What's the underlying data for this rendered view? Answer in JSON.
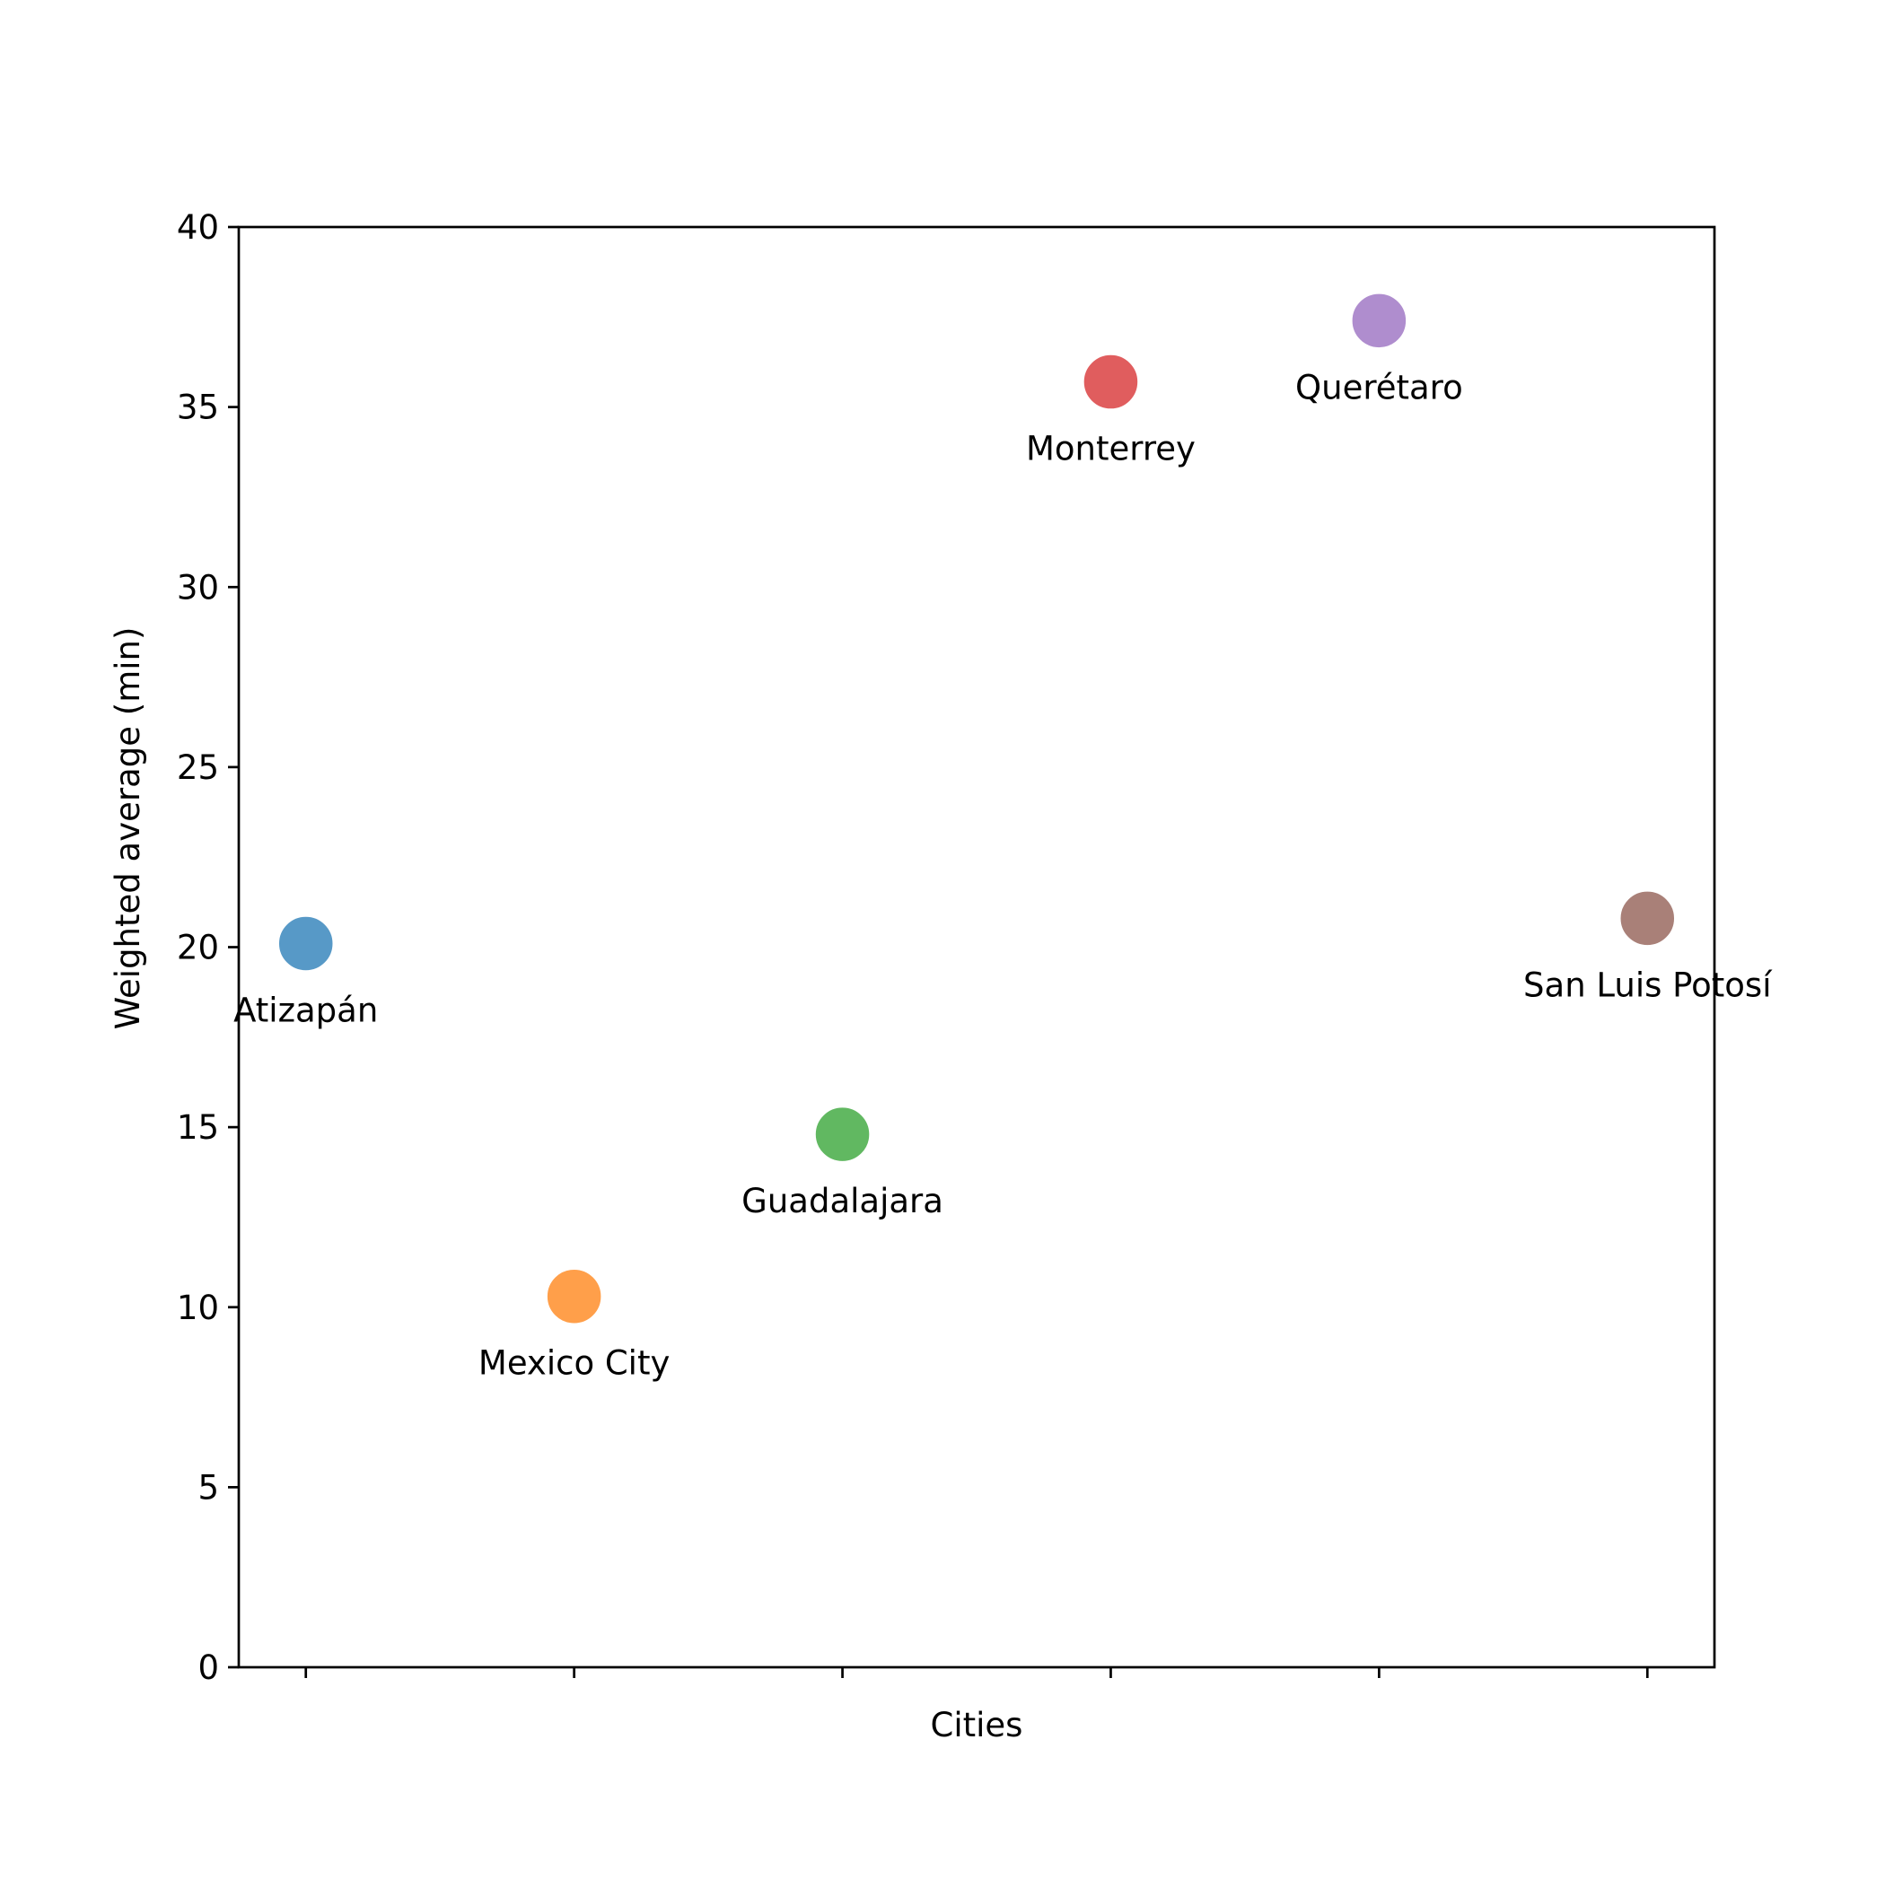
{
  "chart_data": {
    "type": "scatter",
    "title": "",
    "xlabel": "Cities",
    "ylabel": "Weighted average (min)",
    "ylim": [
      0,
      40
    ],
    "yticks": [
      0,
      5,
      10,
      15,
      20,
      25,
      30,
      35,
      40
    ],
    "grid": false,
    "legend": "none",
    "points": [
      {
        "label": "Atizapán",
        "x": 0,
        "y": 20.1,
        "color": "#1f77b4"
      },
      {
        "label": "Mexico City",
        "x": 1,
        "y": 10.3,
        "color": "#ff7f0e"
      },
      {
        "label": "Guadalajara",
        "x": 2,
        "y": 14.8,
        "color": "#2ca02c"
      },
      {
        "label": "Monterrey",
        "x": 3,
        "y": 35.7,
        "color": "#d62728"
      },
      {
        "label": "Querétaro",
        "x": 4,
        "y": 37.4,
        "color": "#9467bd"
      },
      {
        "label": "San Luis Potosí",
        "x": 5,
        "y": 20.8,
        "color": "#8c564b"
      }
    ]
  }
}
